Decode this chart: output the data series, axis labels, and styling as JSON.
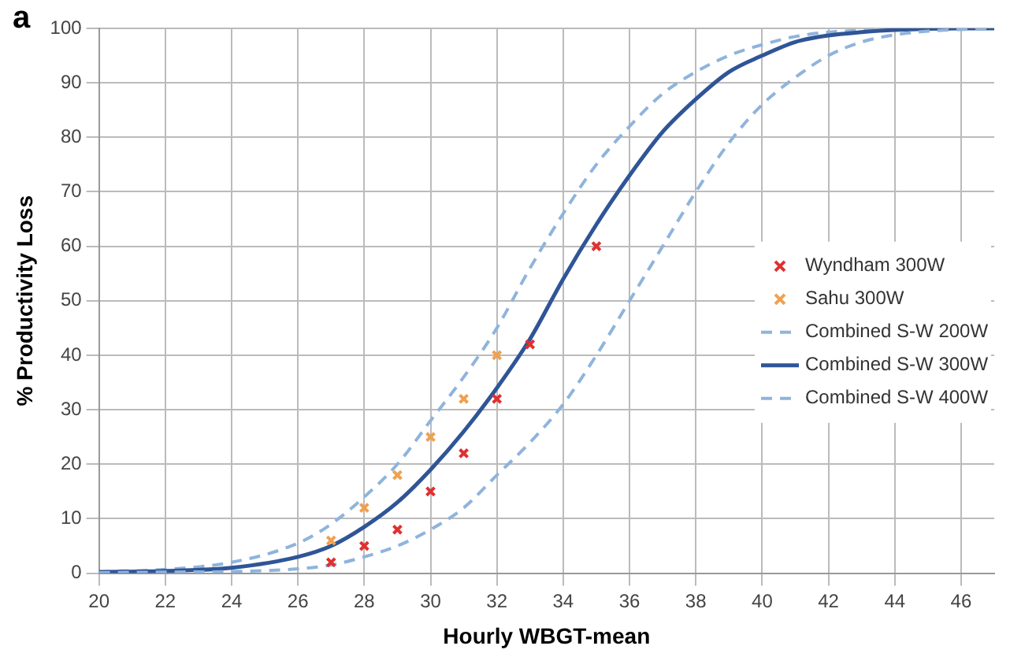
{
  "chart_data": {
    "type": "line",
    "xlabel": "Hourly WBGT-mean",
    "ylabel": "% Productivity Loss",
    "annotations": [
      "a"
    ],
    "xlim": [
      20,
      47
    ],
    "xticks": [
      20,
      22,
      24,
      26,
      28,
      30,
      32,
      34,
      36,
      38,
      40,
      42,
      44,
      46
    ],
    "ylim": [
      0,
      100
    ],
    "yticks": [
      0,
      10,
      20,
      30,
      40,
      50,
      60,
      70,
      80,
      90,
      100
    ],
    "grid": true,
    "legend": "right",
    "series": [
      {
        "name": "Wyndham 300W",
        "type": "scatter",
        "marker": "cross",
        "color": "#e03030",
        "x": [
          27,
          28,
          29,
          30,
          31,
          32,
          33,
          35
        ],
        "values": [
          2,
          5,
          8,
          15,
          22,
          32,
          42,
          60
        ]
      },
      {
        "name": "Sahu 300W",
        "type": "scatter",
        "marker": "cross",
        "color": "#f0a050",
        "x": [
          27,
          28,
          29,
          30,
          31,
          32
        ],
        "values": [
          6,
          12,
          18,
          25,
          32,
          40
        ]
      },
      {
        "name": "Combined S-W 200W",
        "line_style": "dashed",
        "color": "#8fb4dc",
        "x": [
          20,
          22,
          24,
          26,
          27,
          28,
          29,
          30,
          31,
          32,
          33,
          34,
          35,
          36,
          37,
          38,
          39,
          40,
          41,
          42,
          43,
          44,
          45,
          46,
          47
        ],
        "values": [
          0.1,
          0.2,
          0.3,
          0.8,
          1.5,
          3,
          5,
          8,
          12,
          18,
          24,
          31,
          40,
          50,
          60,
          70,
          79,
          86,
          91,
          95,
          97.5,
          98.8,
          99.5,
          99.8,
          100
        ]
      },
      {
        "name": "Combined S-W 300W",
        "line_style": "solid",
        "color": "#2f5597",
        "x": [
          20,
          22,
          24,
          26,
          27,
          28,
          29,
          30,
          31,
          32,
          33,
          34,
          35,
          36,
          37,
          38,
          39,
          40,
          41,
          42,
          43,
          44,
          46,
          47
        ],
        "values": [
          0.2,
          0.4,
          1,
          3,
          5,
          8.5,
          13,
          19,
          26,
          34,
          43,
          54,
          64,
          73,
          81,
          87,
          92,
          95,
          97.5,
          98.7,
          99.3,
          99.7,
          100,
          100
        ]
      },
      {
        "name": "Combined S-W 400W",
        "line_style": "dashed",
        "color": "#8fb4dc",
        "x": [
          20,
          22,
          24,
          26,
          27,
          28,
          29,
          30,
          31,
          32,
          33,
          34,
          35,
          36,
          37,
          38,
          39,
          40,
          41,
          42,
          44,
          46
        ],
        "values": [
          0.3,
          0.7,
          2,
          5.5,
          9,
          14,
          20,
          28,
          36,
          45,
          56,
          66,
          75,
          82,
          88,
          92,
          95,
          97,
          98.5,
          99.3,
          99.8,
          100
        ]
      }
    ]
  }
}
